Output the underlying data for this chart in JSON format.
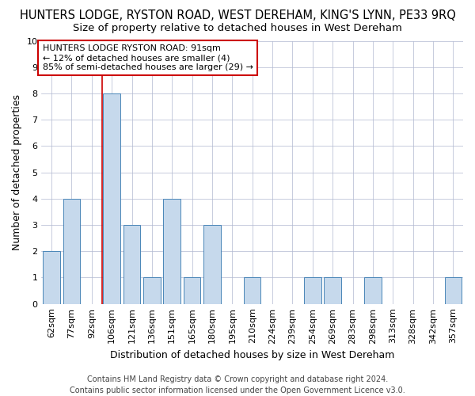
{
  "title": "HUNTERS LODGE, RYSTON ROAD, WEST DEREHAM, KING'S LYNN, PE33 9RQ",
  "subtitle": "Size of property relative to detached houses in West Dereham",
  "xlabel": "Distribution of detached houses by size in West Dereham",
  "ylabel": "Number of detached properties",
  "footer_line1": "Contains HM Land Registry data © Crown copyright and database right 2024.",
  "footer_line2": "Contains public sector information licensed under the Open Government Licence v3.0.",
  "categories": [
    "62sqm",
    "77sqm",
    "92sqm",
    "106sqm",
    "121sqm",
    "136sqm",
    "151sqm",
    "165sqm",
    "180sqm",
    "195sqm",
    "210sqm",
    "224sqm",
    "239sqm",
    "254sqm",
    "269sqm",
    "283sqm",
    "298sqm",
    "313sqm",
    "328sqm",
    "342sqm",
    "357sqm"
  ],
  "values": [
    2,
    4,
    0,
    8,
    3,
    1,
    4,
    1,
    3,
    0,
    1,
    0,
    0,
    1,
    1,
    0,
    1,
    0,
    0,
    0,
    1
  ],
  "bar_color": "#c6d9ec",
  "bar_edge_color": "#4a86b8",
  "ylim": [
    0,
    10
  ],
  "yticks": [
    0,
    1,
    2,
    3,
    4,
    5,
    6,
    7,
    8,
    9,
    10
  ],
  "red_line_index": 2,
  "annotation_line1": "HUNTERS LODGE RYSTON ROAD: 91sqm",
  "annotation_line2": "← 12% of detached houses are smaller (4)",
  "annotation_line3": "85% of semi-detached houses are larger (29) →",
  "annotation_box_color": "#ffffff",
  "annotation_box_edge_color": "#cc0000",
  "background_color": "#ffffff",
  "grid_color": "#b0b8d0",
  "title_fontsize": 10.5,
  "subtitle_fontsize": 9.5,
  "axis_label_fontsize": 9,
  "tick_fontsize": 8,
  "annotation_fontsize": 8,
  "footer_fontsize": 7
}
